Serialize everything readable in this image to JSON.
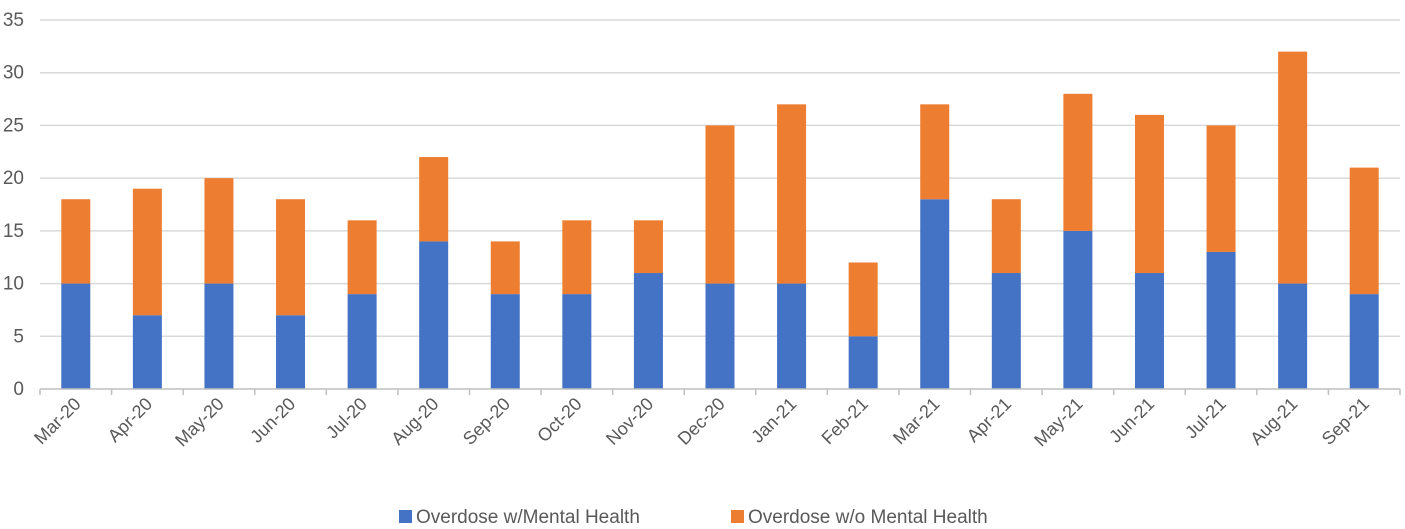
{
  "chart_data": {
    "type": "bar",
    "stacked": true,
    "title": "",
    "xlabel": "",
    "ylabel": "",
    "ylim": [
      0,
      35
    ],
    "y_ticks": [
      0,
      5,
      10,
      15,
      20,
      25,
      30,
      35
    ],
    "grid": true,
    "legend_position": "bottom",
    "categories": [
      "Mar-20",
      "Apr-20",
      "May-20",
      "Jun-20",
      "Jul-20",
      "Aug-20",
      "Sep-20",
      "Oct-20",
      "Nov-20",
      "Dec-20",
      "Jan-21",
      "Feb-21",
      "Mar-21",
      "Apr-21",
      "May-21",
      "Jun-21",
      "Jul-21",
      "Aug-21",
      "Sep-21"
    ],
    "series": [
      {
        "name": "Overdose w/Mental Health",
        "color": "#4472C4",
        "values": [
          10,
          7,
          10,
          7,
          9,
          14,
          9,
          9,
          11,
          10,
          10,
          5,
          18,
          11,
          15,
          11,
          13,
          10,
          9
        ]
      },
      {
        "name": "Overdose w/o Mental Health",
        "color": "#ED7D31",
        "values": [
          8,
          12,
          10,
          11,
          7,
          8,
          5,
          7,
          5,
          15,
          17,
          7,
          9,
          7,
          13,
          15,
          12,
          22,
          12
        ]
      }
    ],
    "colors": {
      "grid": "#d9d9d9",
      "axis": "#bfbfbf",
      "text": "#595959"
    }
  }
}
